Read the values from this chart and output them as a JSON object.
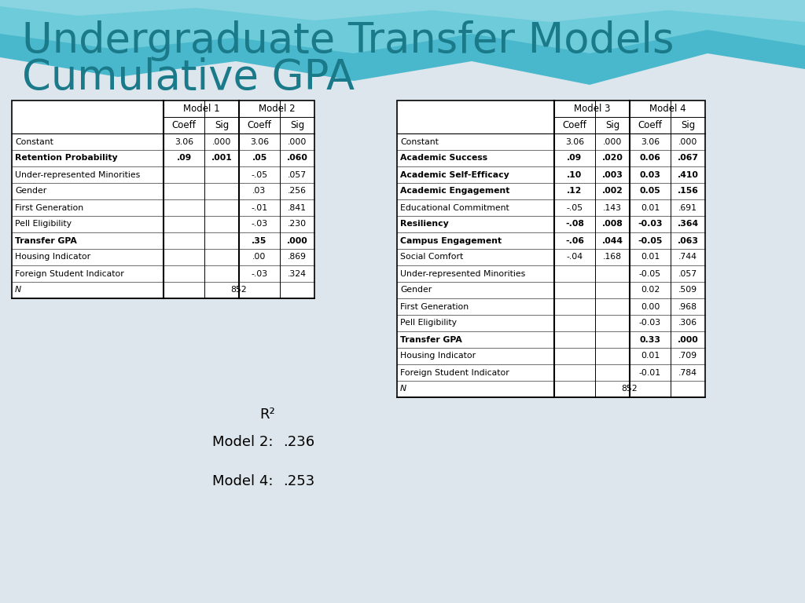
{
  "title_line1": "Undergraduate Transfer Models",
  "title_line2": "Cumulative GPA",
  "title_color": "#1a7a8a",
  "background_color": "#dde6ec",
  "table1": {
    "rows": [
      {
        "label": "Constant",
        "bold": false,
        "italic": false,
        "m1_coeff": "3.06",
        "m1_sig": ".000",
        "m2_coeff": "3.06",
        "m2_sig": ".000"
      },
      {
        "label": "Retention Probability",
        "bold": true,
        "italic": false,
        "m1_coeff": ".09",
        "m1_sig": ".001",
        "m2_coeff": ".05",
        "m2_sig": ".060"
      },
      {
        "label": "Under-represented Minorities",
        "bold": false,
        "italic": false,
        "m1_coeff": "",
        "m1_sig": "",
        "m2_coeff": "-.05",
        "m2_sig": ".057"
      },
      {
        "label": "Gender",
        "bold": false,
        "italic": false,
        "m1_coeff": "",
        "m1_sig": "",
        "m2_coeff": ".03",
        "m2_sig": ".256"
      },
      {
        "label": "First Generation",
        "bold": false,
        "italic": false,
        "m1_coeff": "",
        "m1_sig": "",
        "m2_coeff": "-.01",
        "m2_sig": ".841"
      },
      {
        "label": "Pell Eligibility",
        "bold": false,
        "italic": false,
        "m1_coeff": "",
        "m1_sig": "",
        "m2_coeff": "-.03",
        "m2_sig": ".230"
      },
      {
        "label": "Transfer GPA",
        "bold": true,
        "italic": false,
        "m1_coeff": "",
        "m1_sig": "",
        "m2_coeff": ".35",
        "m2_sig": ".000"
      },
      {
        "label": "Housing Indicator",
        "bold": false,
        "italic": false,
        "m1_coeff": "",
        "m1_sig": "",
        "m2_coeff": ".00",
        "m2_sig": ".869"
      },
      {
        "label": "Foreign Student Indicator",
        "bold": false,
        "italic": false,
        "m1_coeff": "",
        "m1_sig": "",
        "m2_coeff": "-.03",
        "m2_sig": ".324"
      },
      {
        "label": "N",
        "bold": false,
        "italic": true,
        "m1_coeff": "852",
        "m1_sig": "",
        "m2_coeff": "",
        "m2_sig": "",
        "span": true
      }
    ]
  },
  "table2": {
    "rows": [
      {
        "label": "Constant",
        "bold": false,
        "italic": false,
        "m3_coeff": "3.06",
        "m3_sig": ".000",
        "m4_coeff": "3.06",
        "m4_sig": ".000"
      },
      {
        "label": "Academic Success",
        "bold": true,
        "italic": false,
        "m3_coeff": ".09",
        "m3_sig": ".020",
        "m4_coeff": "0.06",
        "m4_sig": ".067"
      },
      {
        "label": "Academic Self-Efficacy",
        "bold": true,
        "italic": false,
        "m3_coeff": ".10",
        "m3_sig": ".003",
        "m4_coeff": "0.03",
        "m4_sig": ".410"
      },
      {
        "label": "Academic Engagement",
        "bold": true,
        "italic": false,
        "m3_coeff": ".12",
        "m3_sig": ".002",
        "m4_coeff": "0.05",
        "m4_sig": ".156"
      },
      {
        "label": "Educational Commitment",
        "bold": false,
        "italic": false,
        "m3_coeff": "-.05",
        "m3_sig": ".143",
        "m4_coeff": "0.01",
        "m4_sig": ".691"
      },
      {
        "label": "Resiliency",
        "bold": true,
        "italic": false,
        "m3_coeff": "-.08",
        "m3_sig": ".008",
        "m4_coeff": "-0.03",
        "m4_sig": ".364"
      },
      {
        "label": "Campus Engagement",
        "bold": true,
        "italic": false,
        "m3_coeff": "-.06",
        "m3_sig": ".044",
        "m4_coeff": "-0.05",
        "m4_sig": ".063"
      },
      {
        "label": "Social Comfort",
        "bold": false,
        "italic": false,
        "m3_coeff": "-.04",
        "m3_sig": ".168",
        "m4_coeff": "0.01",
        "m4_sig": ".744"
      },
      {
        "label": "Under-represented Minorities",
        "bold": false,
        "italic": false,
        "m3_coeff": "",
        "m3_sig": "",
        "m4_coeff": "-0.05",
        "m4_sig": ".057"
      },
      {
        "label": "Gender",
        "bold": false,
        "italic": false,
        "m3_coeff": "",
        "m3_sig": "",
        "m4_coeff": "0.02",
        "m4_sig": ".509"
      },
      {
        "label": "First Generation",
        "bold": false,
        "italic": false,
        "m3_coeff": "",
        "m3_sig": "",
        "m4_coeff": "0.00",
        "m4_sig": ".968"
      },
      {
        "label": "Pell Eligibility",
        "bold": false,
        "italic": false,
        "m3_coeff": "",
        "m3_sig": "",
        "m4_coeff": "-0.03",
        "m4_sig": ".306"
      },
      {
        "label": "Transfer GPA",
        "bold": true,
        "italic": false,
        "m3_coeff": "",
        "m3_sig": "",
        "m4_coeff": "0.33",
        "m4_sig": ".000"
      },
      {
        "label": "Housing Indicator",
        "bold": false,
        "italic": false,
        "m3_coeff": "",
        "m3_sig": "",
        "m4_coeff": "0.01",
        "m4_sig": ".709"
      },
      {
        "label": "Foreign Student Indicator",
        "bold": false,
        "italic": false,
        "m3_coeff": "",
        "m3_sig": "",
        "m4_coeff": "-0.01",
        "m4_sig": ".784"
      },
      {
        "label": "N",
        "bold": false,
        "italic": true,
        "m3_coeff": "852",
        "m3_sig": "",
        "m4_coeff": "",
        "m4_sig": "",
        "span": true
      }
    ]
  },
  "r2_label": "R²",
  "model2_r2_label": "Model 2:",
  "model2_r2_val": ".236",
  "model4_r2_label": "Model 4:",
  "model4_r2_val": ".253"
}
